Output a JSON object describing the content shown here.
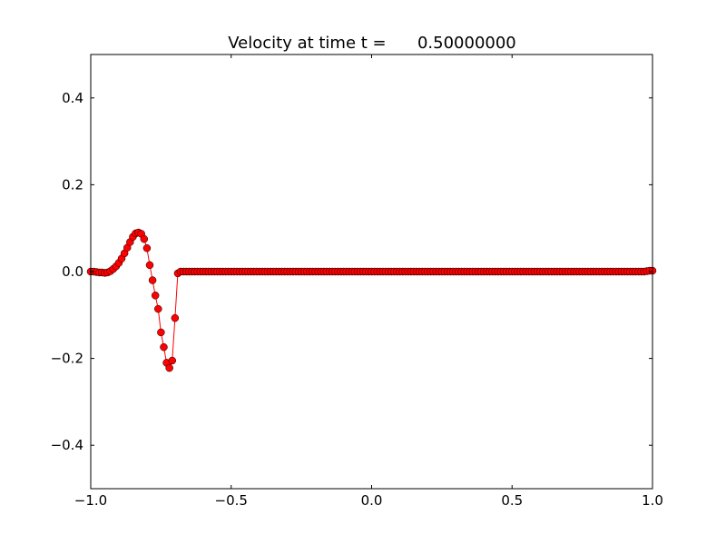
{
  "chart_data": {
    "type": "line",
    "title": "Velocity at time t =      0.50000000",
    "x": [
      -1.0,
      -0.99,
      -0.98,
      -0.97,
      -0.96,
      -0.95,
      -0.94,
      -0.93,
      -0.92,
      -0.91,
      -0.9,
      -0.89,
      -0.88,
      -0.87,
      -0.86,
      -0.85,
      -0.84,
      -0.83,
      -0.82,
      -0.81,
      -0.8,
      -0.79,
      -0.78,
      -0.77,
      -0.76,
      -0.75,
      -0.74,
      -0.73,
      -0.72,
      -0.71,
      -0.7,
      -0.69,
      -0.68,
      -0.67,
      -0.66,
      -0.65,
      -0.64,
      -0.63,
      -0.62,
      -0.61,
      -0.6,
      -0.59,
      -0.58,
      -0.57,
      -0.56,
      -0.55,
      -0.54,
      -0.53,
      -0.52,
      -0.51,
      -0.5,
      -0.49,
      -0.48,
      -0.47,
      -0.46,
      -0.45,
      -0.44,
      -0.43,
      -0.42,
      -0.41,
      -0.4,
      -0.39,
      -0.38,
      -0.37,
      -0.36,
      -0.35,
      -0.34,
      -0.33,
      -0.32,
      -0.31,
      -0.3,
      -0.29,
      -0.28,
      -0.27,
      -0.26,
      -0.25,
      -0.24,
      -0.23,
      -0.22,
      -0.21,
      -0.2,
      -0.19,
      -0.18,
      -0.17,
      -0.16,
      -0.15,
      -0.14,
      -0.13,
      -0.12,
      -0.11,
      -0.1,
      -0.09,
      -0.08,
      -0.07,
      -0.06,
      -0.05,
      -0.04,
      -0.03,
      -0.02,
      -0.01,
      0.0,
      0.01,
      0.02,
      0.03,
      0.04,
      0.05,
      0.06,
      0.07,
      0.08,
      0.09,
      0.1,
      0.11,
      0.12,
      0.13,
      0.14,
      0.15,
      0.16,
      0.17,
      0.18,
      0.19,
      0.2,
      0.21,
      0.22,
      0.23,
      0.24,
      0.25,
      0.26,
      0.27,
      0.28,
      0.29,
      0.3,
      0.31,
      0.32,
      0.33,
      0.34,
      0.35,
      0.36,
      0.37,
      0.38,
      0.39,
      0.4,
      0.41,
      0.42,
      0.43,
      0.44,
      0.45,
      0.46,
      0.47,
      0.48,
      0.49,
      0.5,
      0.51,
      0.52,
      0.53,
      0.54,
      0.55,
      0.56,
      0.57,
      0.58,
      0.59,
      0.6,
      0.61,
      0.62,
      0.63,
      0.64,
      0.65,
      0.66,
      0.67,
      0.68,
      0.69,
      0.7,
      0.71,
      0.72,
      0.73,
      0.74,
      0.75,
      0.76,
      0.77,
      0.78,
      0.79,
      0.8,
      0.81,
      0.82,
      0.83,
      0.84,
      0.85,
      0.86,
      0.87,
      0.88,
      0.89,
      0.9,
      0.91,
      0.92,
      0.93,
      0.94,
      0.95,
      0.96,
      0.97,
      0.98,
      0.99,
      1.0
    ],
    "values": [
      0,
      0,
      -0.001,
      -0.002,
      -0.002,
      -0.003,
      -0.002,
      0.001,
      0.006,
      0.012,
      0.02,
      0.03,
      0.042,
      0.055,
      0.068,
      0.08,
      0.088,
      0.09,
      0.087,
      0.075,
      0.054,
      0.015,
      -0.02,
      -0.055,
      -0.086,
      -0.14,
      -0.174,
      -0.21,
      -0.222,
      -0.205,
      -0.107,
      -0.004,
      0,
      0,
      0,
      0,
      0,
      0,
      0,
      0,
      0,
      0,
      0,
      0,
      0,
      0,
      0,
      0,
      0,
      0,
      0,
      0,
      0,
      0,
      0,
      0,
      0,
      0,
      0,
      0,
      0,
      0,
      0,
      0,
      0,
      0,
      0,
      0,
      0,
      0,
      0,
      0,
      0,
      0,
      0,
      0,
      0,
      0,
      0,
      0,
      0,
      0,
      0,
      0,
      0,
      0,
      0,
      0,
      0,
      0,
      0,
      0,
      0,
      0,
      0,
      0,
      0,
      0,
      0,
      0,
      0,
      0,
      0,
      0,
      0,
      0,
      0,
      0,
      0,
      0,
      0,
      0,
      0,
      0,
      0,
      0,
      0,
      0,
      0,
      0,
      0,
      0,
      0,
      0,
      0,
      0,
      0,
      0,
      0,
      0,
      0,
      0,
      0,
      0,
      0,
      0,
      0,
      0,
      0,
      0,
      0,
      0,
      0,
      0,
      0,
      0,
      0,
      0,
      0,
      0,
      0,
      0,
      0,
      0,
      0,
      0,
      0,
      0,
      0,
      0,
      0,
      0,
      0,
      0,
      0,
      0,
      0,
      0,
      0,
      0,
      0,
      0,
      0,
      0,
      0,
      0,
      0,
      0,
      0,
      0,
      0,
      0,
      0,
      0,
      0,
      0,
      0,
      0,
      0,
      0,
      0,
      0,
      0,
      0,
      0,
      0,
      0,
      0,
      0.001,
      0.002,
      0.002
    ],
    "color": "#ff0000",
    "marker_edge_color": "#000000",
    "xlim": [
      -1.0,
      1.0
    ],
    "xticks": [
      {
        "value": -1.0,
        "label": "−1.0"
      },
      {
        "value": -0.5,
        "label": "−0.5"
      },
      {
        "value": 0.0,
        "label": "0.0"
      },
      0.5,
      {
        "value": 1.0,
        "label": "1.0"
      }
    ],
    "ylim": [
      -0.5,
      0.5
    ],
    "yticks": [
      {
        "value": -0.4,
        "label": "−0.4"
      },
      {
        "value": -0.2,
        "label": "−0.2"
      },
      {
        "value": 0.0,
        "label": "0.0"
      },
      0.2,
      0.4
    ]
  }
}
